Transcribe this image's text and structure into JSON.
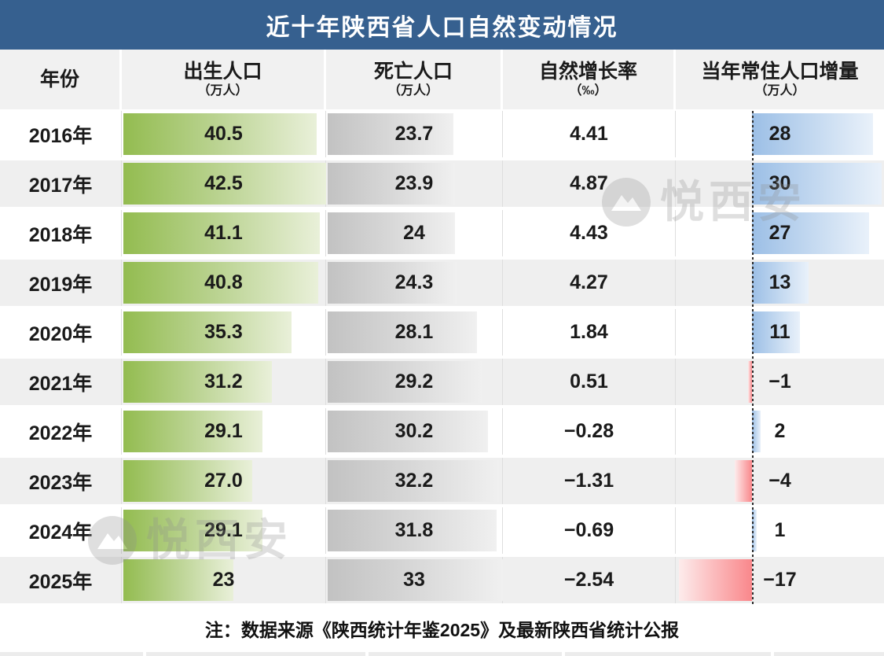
{
  "title": "近十年陕西省人口自然变动情况",
  "header": {
    "year": "年份",
    "birth_label": "出生人口",
    "birth_unit": "（万人）",
    "death_label": "死亡人口",
    "death_unit": "（万人）",
    "rate_label": "自然增长率",
    "rate_unit": "（‰）",
    "delta_label": "当年常住人口增量",
    "delta_unit": "（万人）"
  },
  "note": "注：数据来源《陕西统计年鉴2025》及最新陕西省统计公报",
  "watermark": {
    "text": "悦西安"
  },
  "colors": {
    "title_bar": "#36608F",
    "header_bg": "#F1F1F1",
    "row_alt": "#EFEFEF",
    "birth_bar": "#93BC50",
    "death_bar": "#C2C2C2",
    "delta_bar_positive": "#9CBFE6",
    "delta_bar_negative": "#F9878B",
    "baseline": "#2B2B2B"
  },
  "rows": [
    {
      "year": "2016年",
      "birth": "40.5",
      "death": "23.7",
      "rate": "4.41",
      "delta": "28"
    },
    {
      "year": "2017年",
      "birth": "42.5",
      "death": "23.9",
      "rate": "4.87",
      "delta": "30"
    },
    {
      "year": "2018年",
      "birth": "41.1",
      "death": "24",
      "rate": "4.43",
      "delta": "27"
    },
    {
      "year": "2019年",
      "birth": "40.8",
      "death": "24.3",
      "rate": "4.27",
      "delta": "13"
    },
    {
      "year": "2020年",
      "birth": "35.3",
      "death": "28.1",
      "rate": "1.84",
      "delta": "11"
    },
    {
      "year": "2021年",
      "birth": "31.2",
      "death": "29.2",
      "rate": "0.51",
      "delta": "−1"
    },
    {
      "year": "2022年",
      "birth": "29.1",
      "death": "30.2",
      "rate": "−0.28",
      "delta": "2"
    },
    {
      "year": "2023年",
      "birth": "27.0",
      "death": "32.2",
      "rate": "−1.31",
      "delta": "−4"
    },
    {
      "year": "2024年",
      "birth": "29.1",
      "death": "31.8",
      "rate": "−0.69",
      "delta": "1"
    },
    {
      "year": "2025年",
      "birth": "23",
      "death": "33",
      "rate": "−2.54",
      "delta": "−17"
    }
  ],
  "chart_data": {
    "type": "table",
    "title": "近十年陕西省人口自然变动情况",
    "categories": [
      "2016年",
      "2017年",
      "2018年",
      "2019年",
      "2020年",
      "2021年",
      "2022年",
      "2023年",
      "2024年",
      "2025年"
    ],
    "series": [
      {
        "name": "出生人口(万人)",
        "values": [
          40.5,
          42.5,
          41.1,
          40.8,
          35.3,
          31.2,
          29.1,
          27.0,
          29.1,
          23
        ]
      },
      {
        "name": "死亡人口(万人)",
        "values": [
          23.7,
          23.9,
          24,
          24.3,
          28.1,
          29.2,
          30.2,
          32.2,
          31.8,
          33
        ]
      },
      {
        "name": "自然增长率(‰)",
        "values": [
          4.41,
          4.87,
          4.43,
          4.27,
          1.84,
          0.51,
          -0.28,
          -1.31,
          -0.69,
          -2.54
        ]
      },
      {
        "name": "当年常住人口增量(万人)",
        "values": [
          28,
          30,
          27,
          13,
          11,
          -1,
          2,
          -4,
          1,
          -17
        ]
      }
    ],
    "bar_scales": {
      "birth_max": 42.5,
      "death_max": 33,
      "delta_max": 30
    },
    "annotations": [
      "注：数据来源《陕西统计年鉴2025》及最新陕西省统计公报"
    ],
    "layout": {
      "in_cell_data_bars": true,
      "negative_bars_color": "red",
      "positive_bars_color": "blue",
      "zero_baseline": "dashed"
    }
  }
}
